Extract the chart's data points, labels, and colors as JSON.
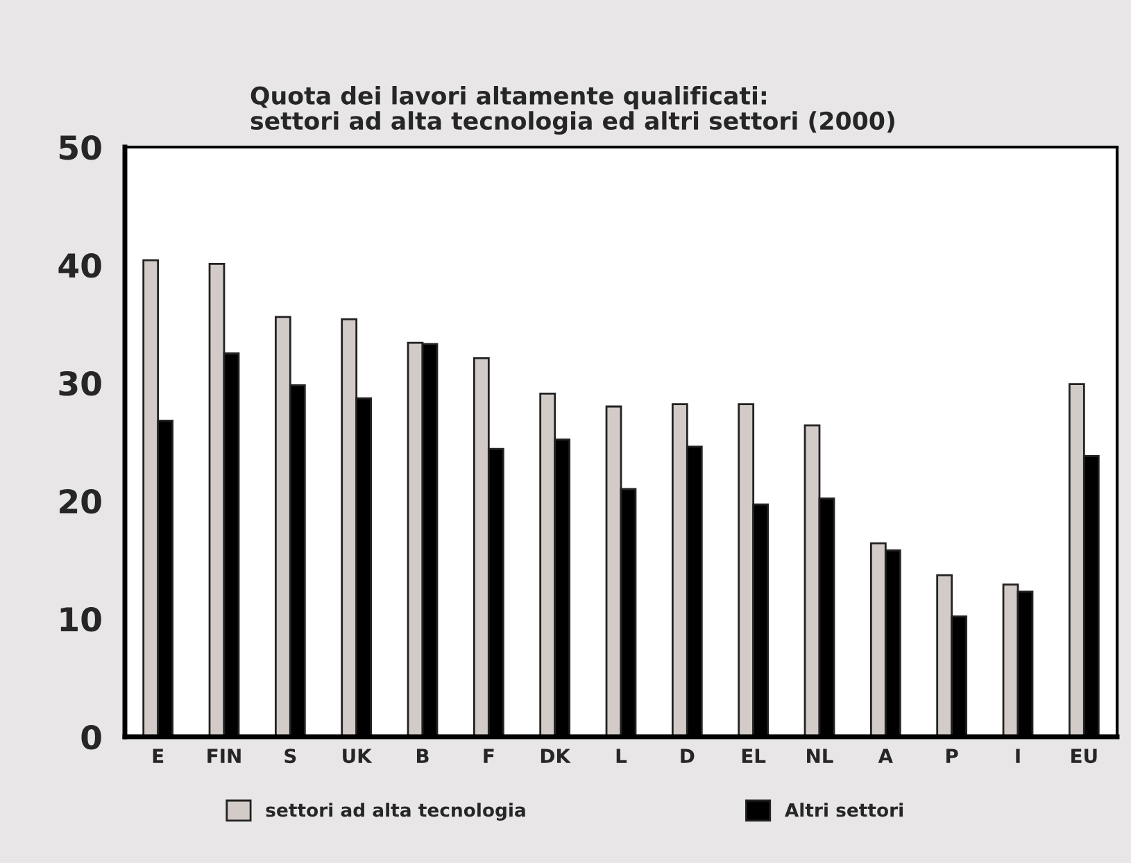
{
  "chart_data": {
    "type": "bar",
    "title": "Quota dei lavori altamente qualificati:\nsettori ad alta tecnologia ed altri settori (2000)",
    "categories": [
      "E",
      "FIN",
      "S",
      "UK",
      "B",
      "F",
      "DK",
      "L",
      "D",
      "EL",
      "NL",
      "A",
      "P",
      "I",
      "EU"
    ],
    "series": [
      {
        "name": "settori ad alta tecnologia",
        "color": "#d3cbc8",
        "values": [
          40.4,
          40.1,
          35.6,
          35.4,
          33.4,
          32.1,
          29.1,
          28.0,
          28.2,
          28.2,
          26.4,
          16.4,
          13.7,
          12.9,
          29.9
        ]
      },
      {
        "name": "Altri settori",
        "color": "#000000",
        "values": [
          26.8,
          32.5,
          29.8,
          28.7,
          33.3,
          24.4,
          25.2,
          21.0,
          24.6,
          19.7,
          20.2,
          15.8,
          10.2,
          12.3,
          23.8
        ]
      }
    ],
    "ylim": [
      0,
      50
    ],
    "yticks": [
      0,
      10,
      20,
      30,
      40,
      50
    ],
    "grid": false,
    "legend": "bottom"
  }
}
